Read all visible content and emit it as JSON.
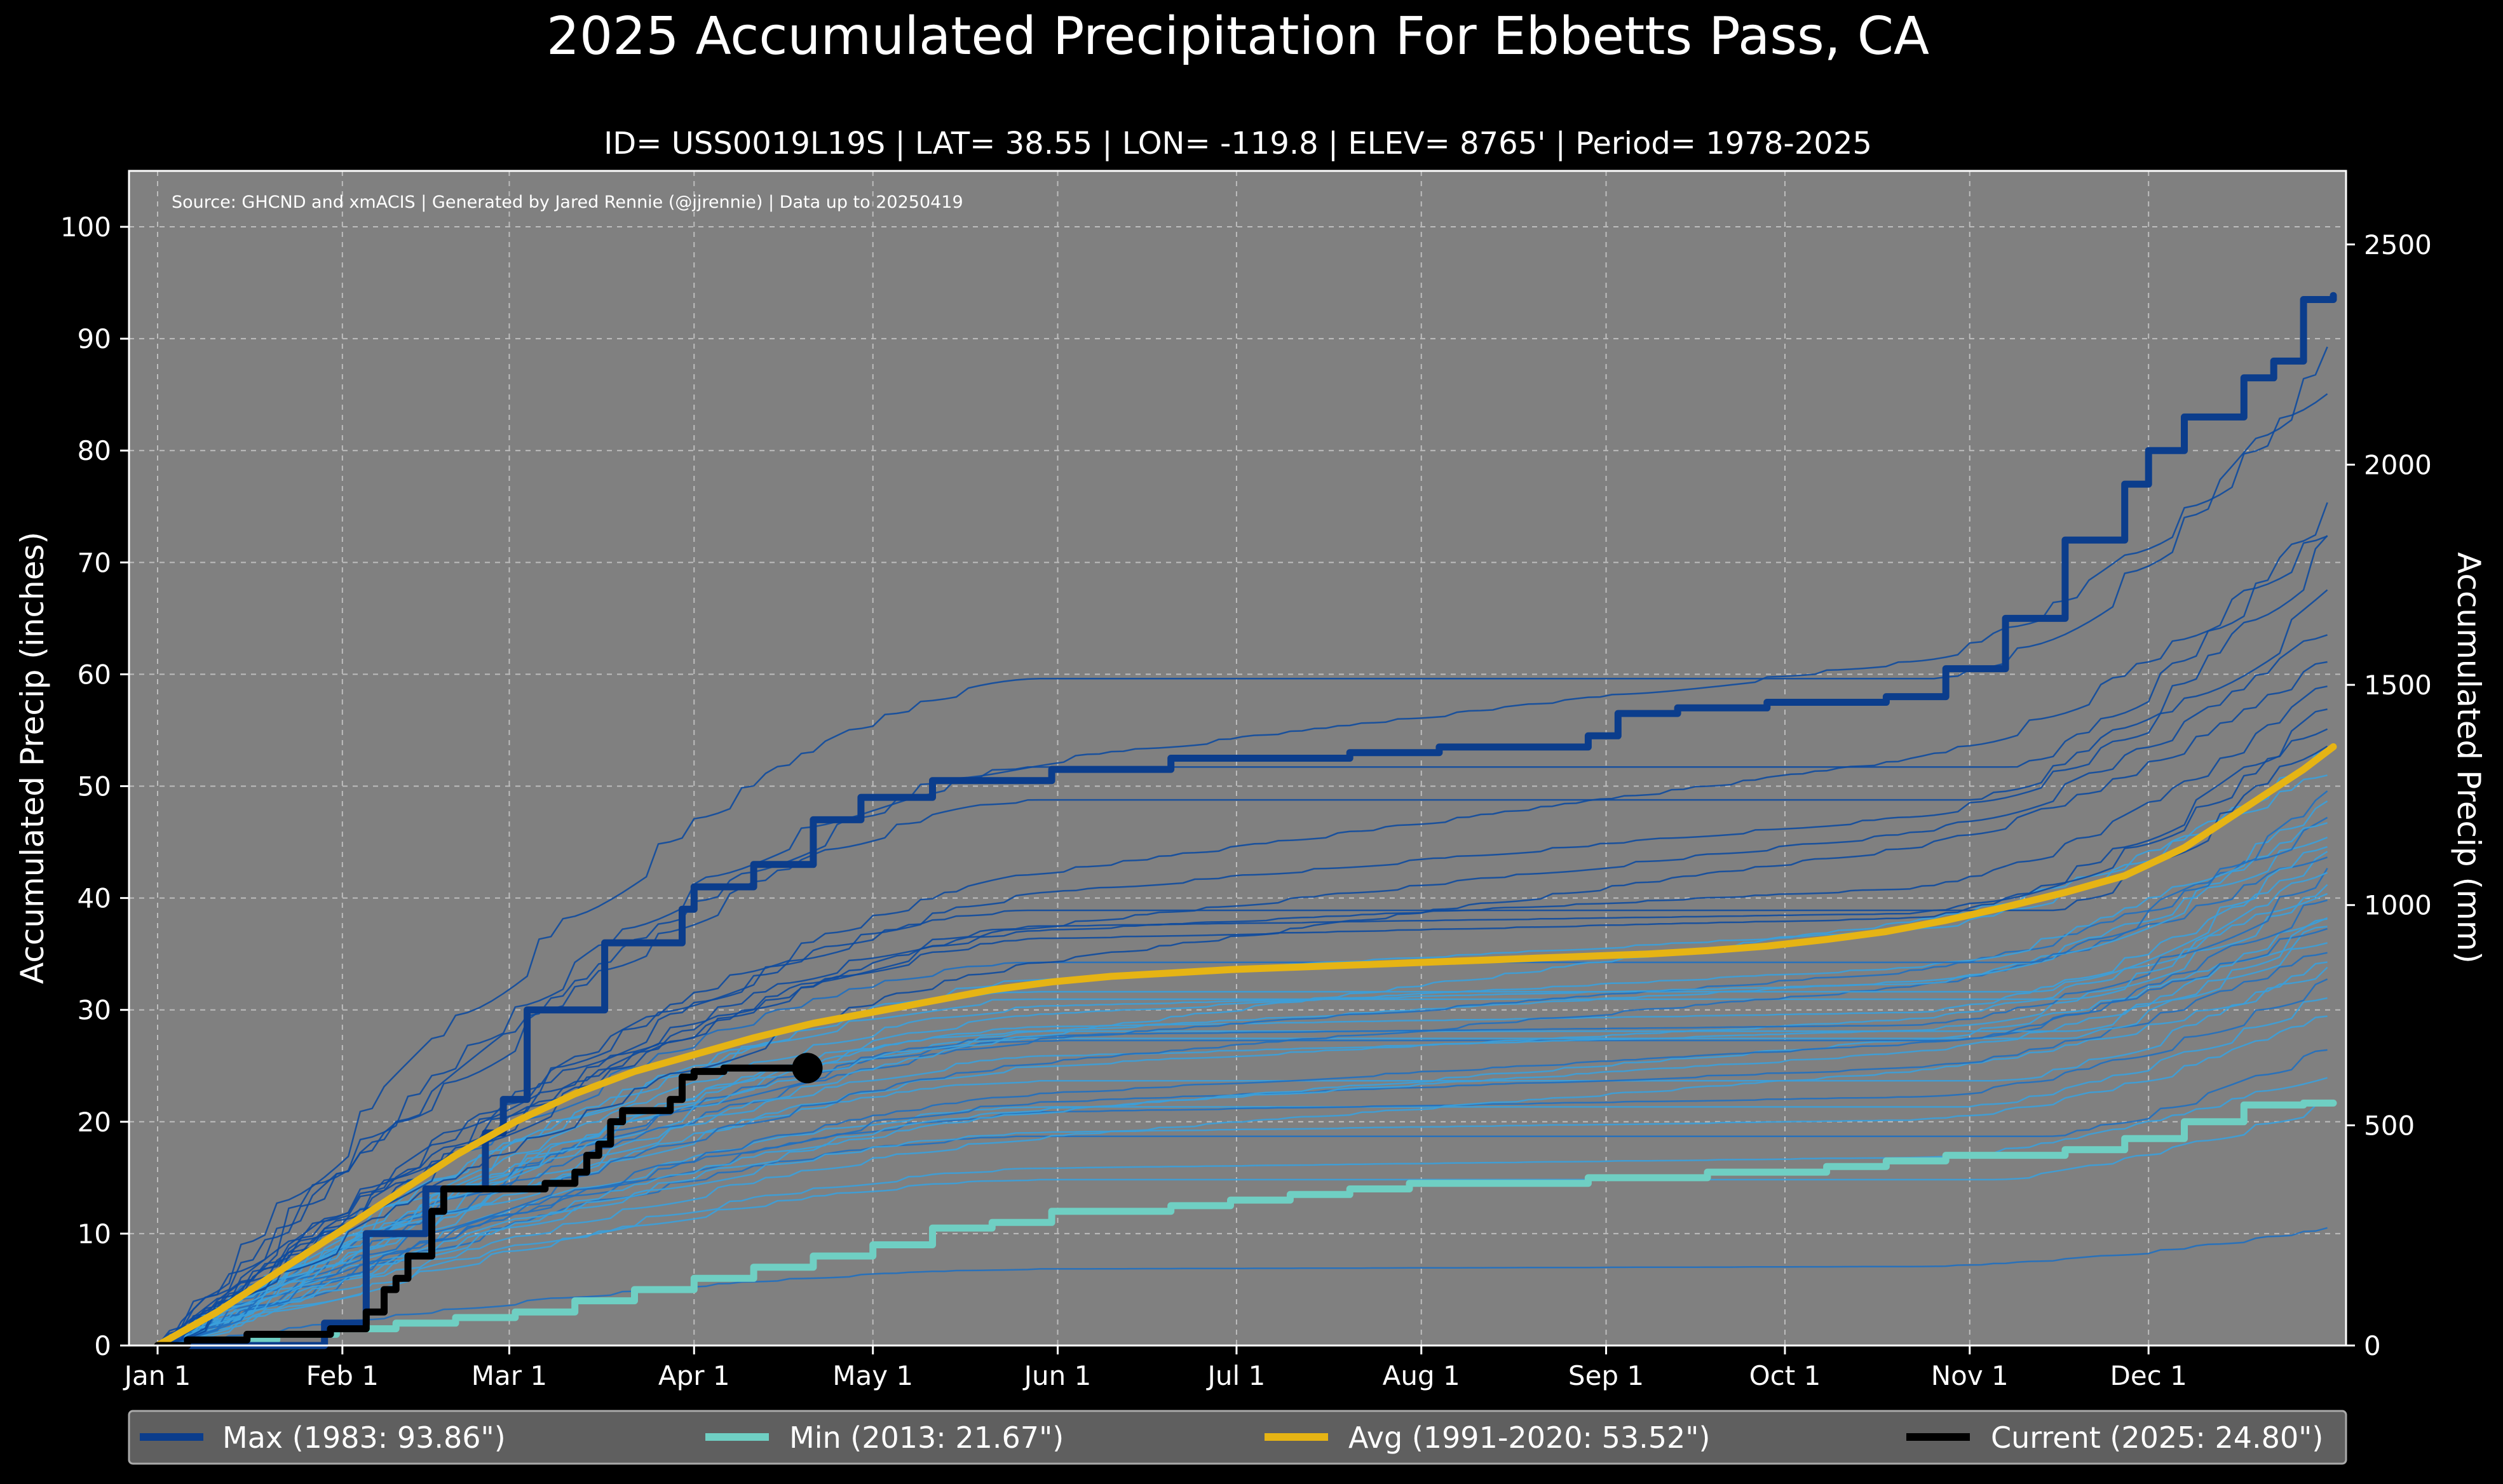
{
  "title": "2025 Accumulated Precipitation For Ebbetts Pass, CA",
  "subtitle": "ID= USS0019L19S | LAT= 38.55 | LON= -119.8 | ELEV= 8765' | Period= 1978-2025",
  "source_note": "Source: GHCND and xmACIS | Generated by Jared Rennie (@jjrennie) | Data up to 20250419",
  "colors": {
    "background": "#000000",
    "plot_bg": "#808080",
    "max": "#0b3d8c",
    "min": "#6fcfc3",
    "avg": "#e6b414",
    "current": "#000000",
    "past_dark": "#0d4a9e",
    "past_light": "#3aa0dc",
    "legend_bg": "#5f5f5f"
  },
  "chart_data": {
    "type": "line",
    "xlabel": "",
    "ylabel": "Accumulated Precip (inches)",
    "ylabel_right": "Accumulated Precip (mm)",
    "xlim": [
      0,
      365
    ],
    "ylim": [
      0,
      105
    ],
    "x_ticks": [
      {
        "label": "Jan 1",
        "day": 0
      },
      {
        "label": "Feb 1",
        "day": 31
      },
      {
        "label": "Mar 1",
        "day": 59
      },
      {
        "label": "Apr 1",
        "day": 90
      },
      {
        "label": "May 1",
        "day": 120
      },
      {
        "label": "Jun 1",
        "day": 151
      },
      {
        "label": "Jul 1",
        "day": 181
      },
      {
        "label": "Aug 1",
        "day": 212
      },
      {
        "label": "Sep 1",
        "day": 243
      },
      {
        "label": "Oct 1",
        "day": 273
      },
      {
        "label": "Nov 1",
        "day": 304
      },
      {
        "label": "Dec 1",
        "day": 334
      }
    ],
    "y_ticks": [
      "0",
      "10",
      "20",
      "30",
      "40",
      "50",
      "60",
      "70",
      "80",
      "90",
      "100"
    ],
    "y2_ticks": [
      "0",
      "500",
      "1000",
      "1500",
      "2000",
      "2500"
    ],
    "series": [
      {
        "name": "Max",
        "label": "Max (1983:  93.86\")",
        "x": [
          0,
          10,
          20,
          28,
          35,
          45,
          55,
          58,
          62,
          75,
          88,
          90,
          100,
          110,
          118,
          130,
          150,
          170,
          200,
          215,
          240,
          245,
          255,
          270,
          290,
          300,
          310,
          320,
          330,
          334,
          340,
          350,
          355,
          360,
          365
        ],
        "values": [
          0,
          0,
          0,
          2,
          10,
          14,
          19,
          22,
          30,
          36,
          39,
          41,
          43,
          47,
          49,
          50.5,
          51.5,
          52.5,
          53,
          53.5,
          54.5,
          56.5,
          57,
          57.5,
          58,
          60.5,
          65,
          72,
          77,
          80,
          83,
          86.5,
          88,
          93.5,
          93.86
        ]
      },
      {
        "name": "Min",
        "label": "Min (2013:  21.67\")",
        "x": [
          0,
          10,
          20,
          30,
          40,
          50,
          60,
          70,
          80,
          90,
          100,
          110,
          120,
          130,
          140,
          150,
          160,
          170,
          180,
          190,
          200,
          210,
          220,
          230,
          240,
          250,
          260,
          270,
          280,
          290,
          300,
          310,
          320,
          330,
          340,
          350,
          360,
          365
        ],
        "values": [
          0,
          0.5,
          1,
          1.5,
          2,
          2.5,
          3,
          4,
          5,
          6,
          7,
          8,
          9,
          10.5,
          11,
          12,
          12,
          12.5,
          13,
          13.5,
          14,
          14.5,
          14.5,
          14.5,
          15,
          15,
          15.5,
          15.5,
          16,
          16.5,
          17,
          17,
          17.5,
          18.5,
          20,
          21.5,
          21.67,
          21.67
        ]
      },
      {
        "name": "Avg",
        "label": "Avg (1991-2020:  53.52\")",
        "x": [
          0,
          10,
          20,
          30,
          40,
          50,
          60,
          70,
          80,
          90,
          100,
          110,
          120,
          130,
          140,
          150,
          160,
          170,
          180,
          190,
          200,
          210,
          220,
          230,
          240,
          250,
          260,
          270,
          280,
          290,
          300,
          310,
          320,
          330,
          340,
          350,
          360,
          365
        ],
        "values": [
          0,
          3,
          6.5,
          10,
          13.5,
          17,
          20,
          22.5,
          24.5,
          26,
          27.5,
          28.8,
          29.8,
          30.8,
          31.8,
          32.5,
          33,
          33.3,
          33.6,
          33.8,
          34,
          34.2,
          34.4,
          34.6,
          34.8,
          35,
          35.3,
          35.7,
          36.3,
          37,
          38,
          39.2,
          40.5,
          42,
          44.5,
          48,
          51.5,
          53.52
        ]
      },
      {
        "name": "Current",
        "label": "Current (2025:  24.80\")",
        "x": [
          0,
          5,
          15,
          25,
          29,
          31,
          35,
          38,
          40,
          42,
          44,
          46,
          48,
          50,
          55,
          60,
          65,
          70,
          72,
          74,
          76,
          78,
          80,
          84,
          86,
          88,
          90,
          92,
          95,
          100,
          105,
          109
        ],
        "values": [
          0,
          0.5,
          1,
          1,
          1.5,
          1.5,
          3,
          5,
          6,
          8,
          8,
          12,
          14,
          14,
          14,
          14,
          14.5,
          15.5,
          17,
          18,
          20,
          21,
          21,
          21,
          22,
          24,
          24.5,
          24.5,
          24.8,
          24.8,
          24.8,
          24.8
        ]
      }
    ],
    "legend_position": "bottom"
  }
}
